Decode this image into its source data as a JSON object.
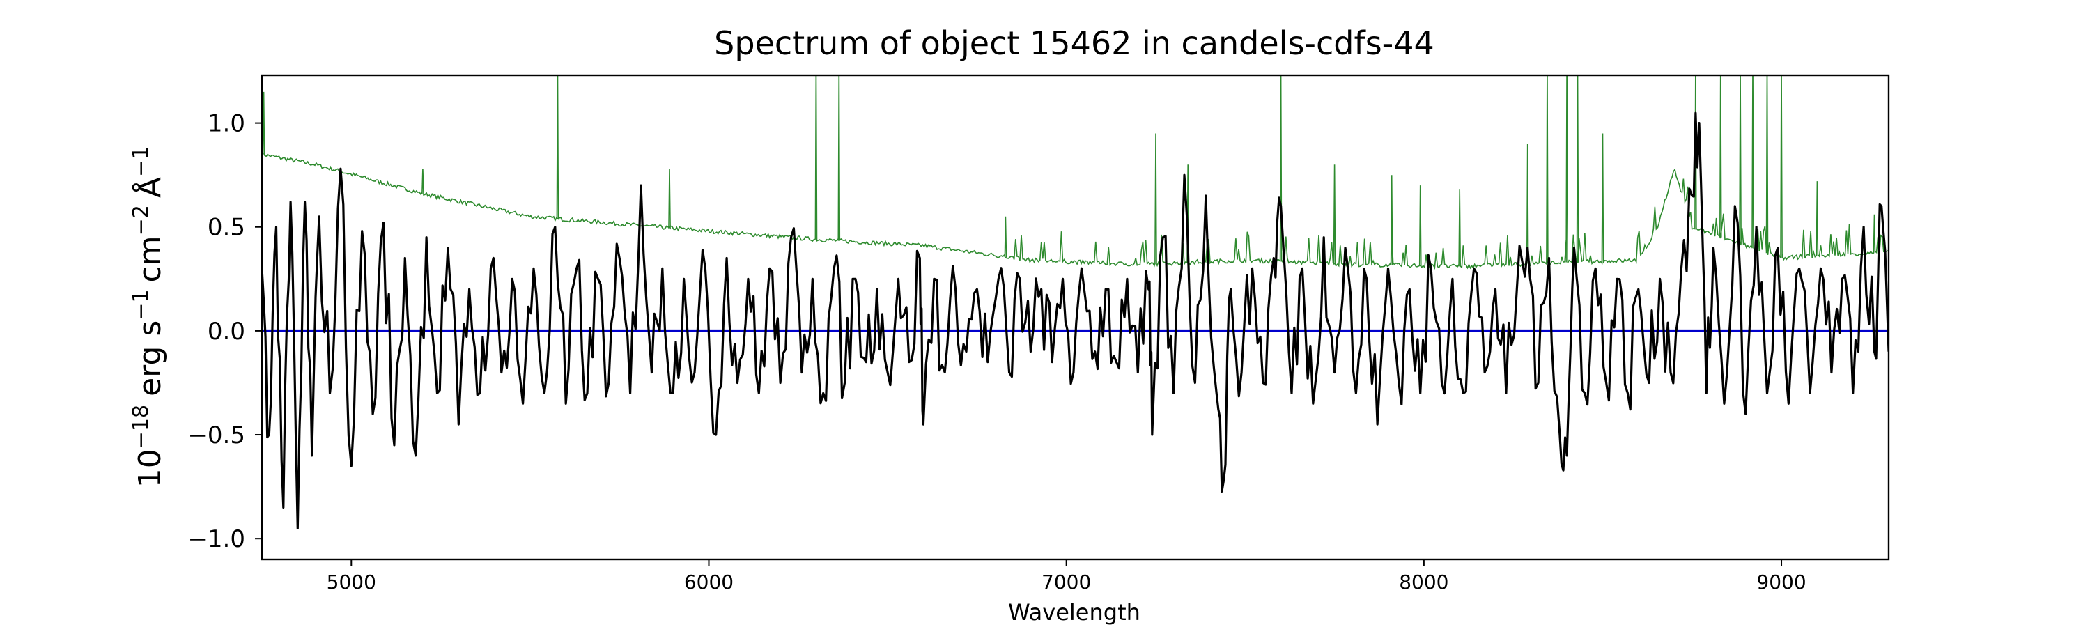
{
  "chart_data": {
    "type": "line",
    "title": "Spectrum of object 15462 in candels-cdfs-44",
    "xlabel": "Wavelength",
    "ylabel": {
      "base": "10",
      "exp": "−18",
      "unit": "erg s",
      "s_exp": "−1",
      "unit2": "cm",
      "cm_exp": "−2",
      "unit3": "Å",
      "a_exp": "−1"
    },
    "xlim": [
      4750,
      9300
    ],
    "ylim": [
      -1.1,
      1.23
    ],
    "xticks": [
      5000,
      6000,
      7000,
      8000,
      9000
    ],
    "xtick_labels": [
      "5000",
      "6000",
      "7000",
      "8000",
      "9000"
    ],
    "yticks": [
      -1.0,
      -0.5,
      0.0,
      0.5,
      1.0
    ],
    "ytick_labels": [
      "−1.0",
      "−0.5",
      "0.0",
      "0.5",
      "1.0"
    ],
    "grid": false,
    "series": [
      {
        "role": "noise",
        "color": "#2e8b2e",
        "continuum": [
          [
            4750,
            0.85
          ],
          [
            4900,
            0.8
          ],
          [
            5200,
            0.66
          ],
          [
            5500,
            0.55
          ],
          [
            6000,
            0.48
          ],
          [
            6300,
            0.44
          ],
          [
            6600,
            0.41
          ],
          [
            6900,
            0.34
          ],
          [
            7200,
            0.32
          ],
          [
            7500,
            0.34
          ],
          [
            7800,
            0.32
          ],
          [
            8100,
            0.31
          ],
          [
            8400,
            0.33
          ],
          [
            8600,
            0.34
          ],
          [
            8650,
            0.48
          ],
          [
            8700,
            0.78
          ],
          [
            8750,
            0.5
          ],
          [
            9000,
            0.35
          ],
          [
            9300,
            0.38
          ]
        ],
        "spikes": [
          [
            4755,
            1.15
          ],
          [
            5200,
            0.78
          ],
          [
            5577,
            1.3
          ],
          [
            5890,
            0.78
          ],
          [
            6300,
            1.3
          ],
          [
            6364,
            1.3
          ],
          [
            6830,
            0.55
          ],
          [
            7250,
            0.95
          ],
          [
            7340,
            0.8
          ],
          [
            7600,
            1.25
          ],
          [
            7750,
            0.8
          ],
          [
            7910,
            0.75
          ],
          [
            7990,
            0.7
          ],
          [
            8100,
            0.68
          ],
          [
            8290,
            0.9
          ],
          [
            8345,
            1.3
          ],
          [
            8400,
            1.3
          ],
          [
            8430,
            1.3
          ],
          [
            8500,
            0.95
          ],
          [
            8760,
            1.3
          ],
          [
            8830,
            1.3
          ],
          [
            8885,
            1.3
          ],
          [
            8920,
            1.3
          ],
          [
            8960,
            1.3
          ],
          [
            9000,
            1.3
          ],
          [
            9100,
            0.72
          ],
          [
            9260,
            0.56
          ]
        ]
      },
      {
        "role": "zero",
        "color": "#0000cc",
        "value": 0.0
      },
      {
        "role": "flux",
        "color": "#000000",
        "points": [
          [
            4750,
            0.3
          ],
          [
            4770,
            -0.5
          ],
          [
            4790,
            0.5
          ],
          [
            4810,
            -0.85
          ],
          [
            4830,
            0.62
          ],
          [
            4850,
            -0.95
          ],
          [
            4870,
            0.62
          ],
          [
            4890,
            -0.6
          ],
          [
            4910,
            0.55
          ],
          [
            4940,
            -0.3
          ],
          [
            4970,
            0.78
          ],
          [
            5000,
            -0.65
          ],
          [
            5030,
            0.48
          ],
          [
            5060,
            -0.4
          ],
          [
            5090,
            0.52
          ],
          [
            5120,
            -0.55
          ],
          [
            5150,
            0.35
          ],
          [
            5180,
            -0.6
          ],
          [
            5210,
            0.45
          ],
          [
            5240,
            -0.3
          ],
          [
            5270,
            0.4
          ],
          [
            5300,
            -0.45
          ],
          [
            5330,
            0.2
          ],
          [
            5360,
            -0.3
          ],
          [
            5390,
            0.3
          ],
          [
            5420,
            -0.2
          ],
          [
            5450,
            0.25
          ],
          [
            5480,
            -0.35
          ],
          [
            5510,
            0.3
          ],
          [
            5540,
            -0.3
          ],
          [
            5570,
            0.5
          ],
          [
            5600,
            -0.35
          ],
          [
            5630,
            0.3
          ],
          [
            5660,
            -0.3
          ],
          [
            5690,
            0.25
          ],
          [
            5720,
            -0.25
          ],
          [
            5750,
            0.35
          ],
          [
            5780,
            -0.3
          ],
          [
            5810,
            0.7
          ],
          [
            5840,
            -0.2
          ],
          [
            5870,
            0.3
          ],
          [
            5900,
            -0.3
          ],
          [
            5930,
            0.25
          ],
          [
            5960,
            -0.2
          ],
          [
            5990,
            0.3
          ],
          [
            6020,
            -0.5
          ],
          [
            6050,
            0.35
          ],
          [
            6080,
            -0.25
          ],
          [
            6110,
            0.25
          ],
          [
            6140,
            -0.3
          ],
          [
            6170,
            0.3
          ],
          [
            6200,
            -0.25
          ],
          [
            6230,
            0.45
          ],
          [
            6260,
            -0.2
          ],
          [
            6290,
            0.25
          ],
          [
            6320,
            -0.3
          ],
          [
            6350,
            0.3
          ],
          [
            6380,
            -0.25
          ],
          [
            6410,
            0.25
          ],
          [
            6440,
            -0.15
          ],
          [
            6470,
            0.2
          ],
          [
            6500,
            -0.2
          ],
          [
            6530,
            0.25
          ],
          [
            6560,
            -0.15
          ],
          [
            6590,
            0.35
          ],
          [
            6600,
            -0.45
          ],
          [
            6630,
            0.25
          ],
          [
            6660,
            -0.2
          ],
          [
            6690,
            0.2
          ],
          [
            6720,
            -0.1
          ],
          [
            6750,
            0.2
          ],
          [
            6780,
            -0.15
          ],
          [
            6810,
            0.25
          ],
          [
            6840,
            -0.2
          ],
          [
            6870,
            0.25
          ],
          [
            6900,
            -0.1
          ],
          [
            6930,
            0.2
          ],
          [
            6960,
            -0.15
          ],
          [
            6990,
            0.25
          ],
          [
            7020,
            -0.2
          ],
          [
            7050,
            0.2
          ],
          [
            7080,
            -0.1
          ],
          [
            7110,
            0.2
          ],
          [
            7140,
            -0.15
          ],
          [
            7170,
            0.25
          ],
          [
            7200,
            -0.2
          ],
          [
            7230,
            0.2
          ],
          [
            7240,
            -0.5
          ],
          [
            7270,
            0.45
          ],
          [
            7300,
            -0.3
          ],
          [
            7330,
            0.75
          ],
          [
            7360,
            -0.25
          ],
          [
            7390,
            0.65
          ],
          [
            7420,
            -0.3
          ],
          [
            7440,
            -0.72
          ],
          [
            7460,
            0.2
          ],
          [
            7490,
            -0.2
          ],
          [
            7520,
            0.3
          ],
          [
            7550,
            -0.25
          ],
          [
            7580,
            0.35
          ],
          [
            7600,
            0.6
          ],
          [
            7630,
            -0.3
          ],
          [
            7660,
            0.3
          ],
          [
            7690,
            -0.35
          ],
          [
            7720,
            0.45
          ],
          [
            7750,
            -0.2
          ],
          [
            7780,
            0.4
          ],
          [
            7810,
            -0.3
          ],
          [
            7840,
            0.25
          ],
          [
            7870,
            -0.45
          ],
          [
            7900,
            0.3
          ],
          [
            7930,
            -0.25
          ],
          [
            7960,
            0.2
          ],
          [
            7990,
            -0.3
          ],
          [
            8020,
            0.3
          ],
          [
            8050,
            -0.25
          ],
          [
            8080,
            0.25
          ],
          [
            8110,
            -0.3
          ],
          [
            8140,
            0.3
          ],
          [
            8170,
            -0.2
          ],
          [
            8200,
            0.2
          ],
          [
            8230,
            -0.3
          ],
          [
            8260,
            0.2
          ],
          [
            8290,
            0.4
          ],
          [
            8320,
            -0.25
          ],
          [
            8350,
            0.35
          ],
          [
            8380,
            -0.5
          ],
          [
            8400,
            -0.6
          ],
          [
            8420,
            0.4
          ],
          [
            8450,
            -0.3
          ],
          [
            8480,
            0.3
          ],
          [
            8510,
            -0.25
          ],
          [
            8540,
            0.25
          ],
          [
            8570,
            -0.3
          ],
          [
            8600,
            0.2
          ],
          [
            8630,
            -0.25
          ],
          [
            8660,
            0.25
          ],
          [
            8690,
            -0.2
          ],
          [
            8720,
            0.3
          ],
          [
            8750,
            0.65
          ],
          [
            8770,
            1.0
          ],
          [
            8790,
            -0.3
          ],
          [
            8810,
            0.4
          ],
          [
            8840,
            -0.35
          ],
          [
            8870,
            0.6
          ],
          [
            8900,
            -0.4
          ],
          [
            8930,
            0.5
          ],
          [
            8960,
            -0.3
          ],
          [
            8990,
            0.4
          ],
          [
            9020,
            -0.35
          ],
          [
            9050,
            0.3
          ],
          [
            9080,
            -0.3
          ],
          [
            9110,
            0.3
          ],
          [
            9140,
            -0.2
          ],
          [
            9170,
            0.25
          ],
          [
            9200,
            -0.3
          ],
          [
            9230,
            0.5
          ],
          [
            9260,
            -0.1
          ],
          [
            9280,
            0.6
          ],
          [
            9300,
            -0.1
          ]
        ]
      }
    ]
  }
}
